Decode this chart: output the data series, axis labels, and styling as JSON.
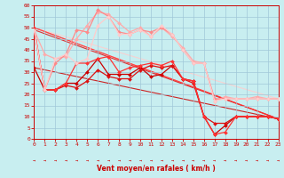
{
  "xlabel": "Vent moyen/en rafales ( km/h )",
  "xlim": [
    0,
    23
  ],
  "ylim": [
    0,
    60
  ],
  "yticks": [
    0,
    5,
    10,
    15,
    20,
    25,
    30,
    35,
    40,
    45,
    50,
    55,
    60
  ],
  "xticks": [
    0,
    1,
    2,
    3,
    4,
    5,
    6,
    7,
    8,
    9,
    10,
    11,
    12,
    13,
    14,
    15,
    16,
    17,
    18,
    19,
    20,
    21,
    22,
    23
  ],
  "bg_color": "#c8eef0",
  "grid_color": "#a0c8d8",
  "tick_color": "#cc0000",
  "label_color": "#cc0000",
  "spine_color": "#cc0000",
  "series": [
    {
      "x": [
        0,
        1,
        2,
        3,
        4,
        5,
        6,
        7,
        8,
        9,
        10,
        11,
        12,
        13,
        14,
        15,
        16,
        17,
        18,
        19,
        20,
        21,
        22,
        23
      ],
      "y": [
        32,
        22,
        22,
        25,
        25,
        30,
        36,
        29,
        29,
        29,
        32,
        28,
        29,
        33,
        27,
        26,
        10,
        2,
        6,
        10,
        10,
        10,
        10,
        9
      ],
      "color": "#cc0000",
      "lw": 0.9,
      "marker": "D",
      "ms": 2.0
    },
    {
      "x": [
        0,
        1,
        2,
        3,
        4,
        5,
        6,
        7,
        8,
        9,
        10,
        11,
        12,
        13,
        14,
        15,
        16,
        17,
        18,
        19,
        20,
        21,
        22,
        23
      ],
      "y": [
        49,
        22,
        22,
        24,
        23,
        26,
        31,
        28,
        27,
        27,
        31,
        33,
        32,
        33,
        27,
        25,
        10,
        7,
        7,
        10,
        10,
        10,
        10,
        9
      ],
      "color": "#dd1111",
      "lw": 0.9,
      "marker": "D",
      "ms": 2.0
    },
    {
      "x": [
        0,
        1,
        2,
        3,
        4,
        5,
        6,
        7,
        8,
        9,
        10,
        11,
        12,
        13,
        14,
        15,
        16,
        17,
        18,
        19,
        20,
        21,
        22,
        23
      ],
      "y": [
        50,
        22,
        22,
        25,
        34,
        34,
        36,
        37,
        30,
        32,
        33,
        34,
        33,
        35,
        27,
        26,
        10,
        2,
        3,
        10,
        10,
        10,
        10,
        9
      ],
      "color": "#ff3333",
      "lw": 0.9,
      "marker": "D",
      "ms": 2.0
    },
    {
      "x": [
        0,
        1,
        2,
        3,
        4,
        5,
        6,
        7,
        8,
        9,
        10,
        11,
        12,
        13,
        14,
        15,
        16,
        17,
        18,
        19,
        20,
        21,
        22,
        23
      ],
      "y": [
        49,
        38,
        36,
        37,
        45,
        51,
        57,
        56,
        52,
        48,
        50,
        46,
        50,
        46,
        41,
        35,
        34,
        17,
        19,
        18,
        18,
        19,
        18,
        18
      ],
      "color": "#ffaaaa",
      "lw": 0.9,
      "marker": "D",
      "ms": 2.0
    },
    {
      "x": [
        0,
        1,
        2,
        3,
        4,
        5,
        6,
        7,
        8,
        9,
        10,
        11,
        12,
        13,
        14,
        15,
        16,
        17,
        18,
        19,
        20,
        21,
        22,
        23
      ],
      "y": [
        49,
        22,
        34,
        38,
        49,
        48,
        58,
        55,
        48,
        47,
        49,
        48,
        50,
        47,
        40,
        34,
        34,
        18,
        18,
        18,
        18,
        18,
        18,
        18
      ],
      "color": "#ff8888",
      "lw": 0.9,
      "marker": "D",
      "ms": 2.0
    },
    {
      "x": [
        0,
        1,
        2,
        3,
        4,
        5,
        6,
        7,
        8,
        9,
        10,
        11,
        12,
        13,
        14,
        15,
        16,
        17,
        18,
        19,
        20,
        21,
        22,
        23
      ],
      "y": [
        49,
        22,
        36,
        38,
        34,
        36,
        51,
        55,
        47,
        47,
        49,
        46,
        51,
        47,
        40,
        34,
        34,
        17,
        18,
        18,
        18,
        18,
        18,
        18
      ],
      "color": "#ffcccc",
      "lw": 0.9,
      "marker": "D",
      "ms": 2.0
    }
  ],
  "trend_lines": [
    {
      "x": [
        0,
        23
      ],
      "y": [
        50,
        9
      ],
      "color": "#ffaaaa",
      "lw": 0.8
    },
    {
      "x": [
        0,
        23
      ],
      "y": [
        50,
        18
      ],
      "color": "#ffcccc",
      "lw": 0.8
    },
    {
      "x": [
        0,
        23
      ],
      "y": [
        50,
        9
      ],
      "color": "#ff8888",
      "lw": 0.8
    },
    {
      "x": [
        0,
        23
      ],
      "y": [
        32,
        9
      ],
      "color": "#cc0000",
      "lw": 0.8
    },
    {
      "x": [
        0,
        23
      ],
      "y": [
        49,
        9
      ],
      "color": "#dd1111",
      "lw": 0.8
    },
    {
      "x": [
        0,
        23
      ],
      "y": [
        50,
        9
      ],
      "color": "#ff3333",
      "lw": 0.8
    }
  ],
  "arrows": [
    "→",
    "→",
    "→",
    "→",
    "→",
    "→",
    "→",
    "→",
    "→",
    "→",
    "→",
    "→",
    "→",
    "→",
    "→",
    "→",
    "→",
    "→",
    "→",
    "→",
    "→",
    "→",
    "→",
    "→"
  ]
}
